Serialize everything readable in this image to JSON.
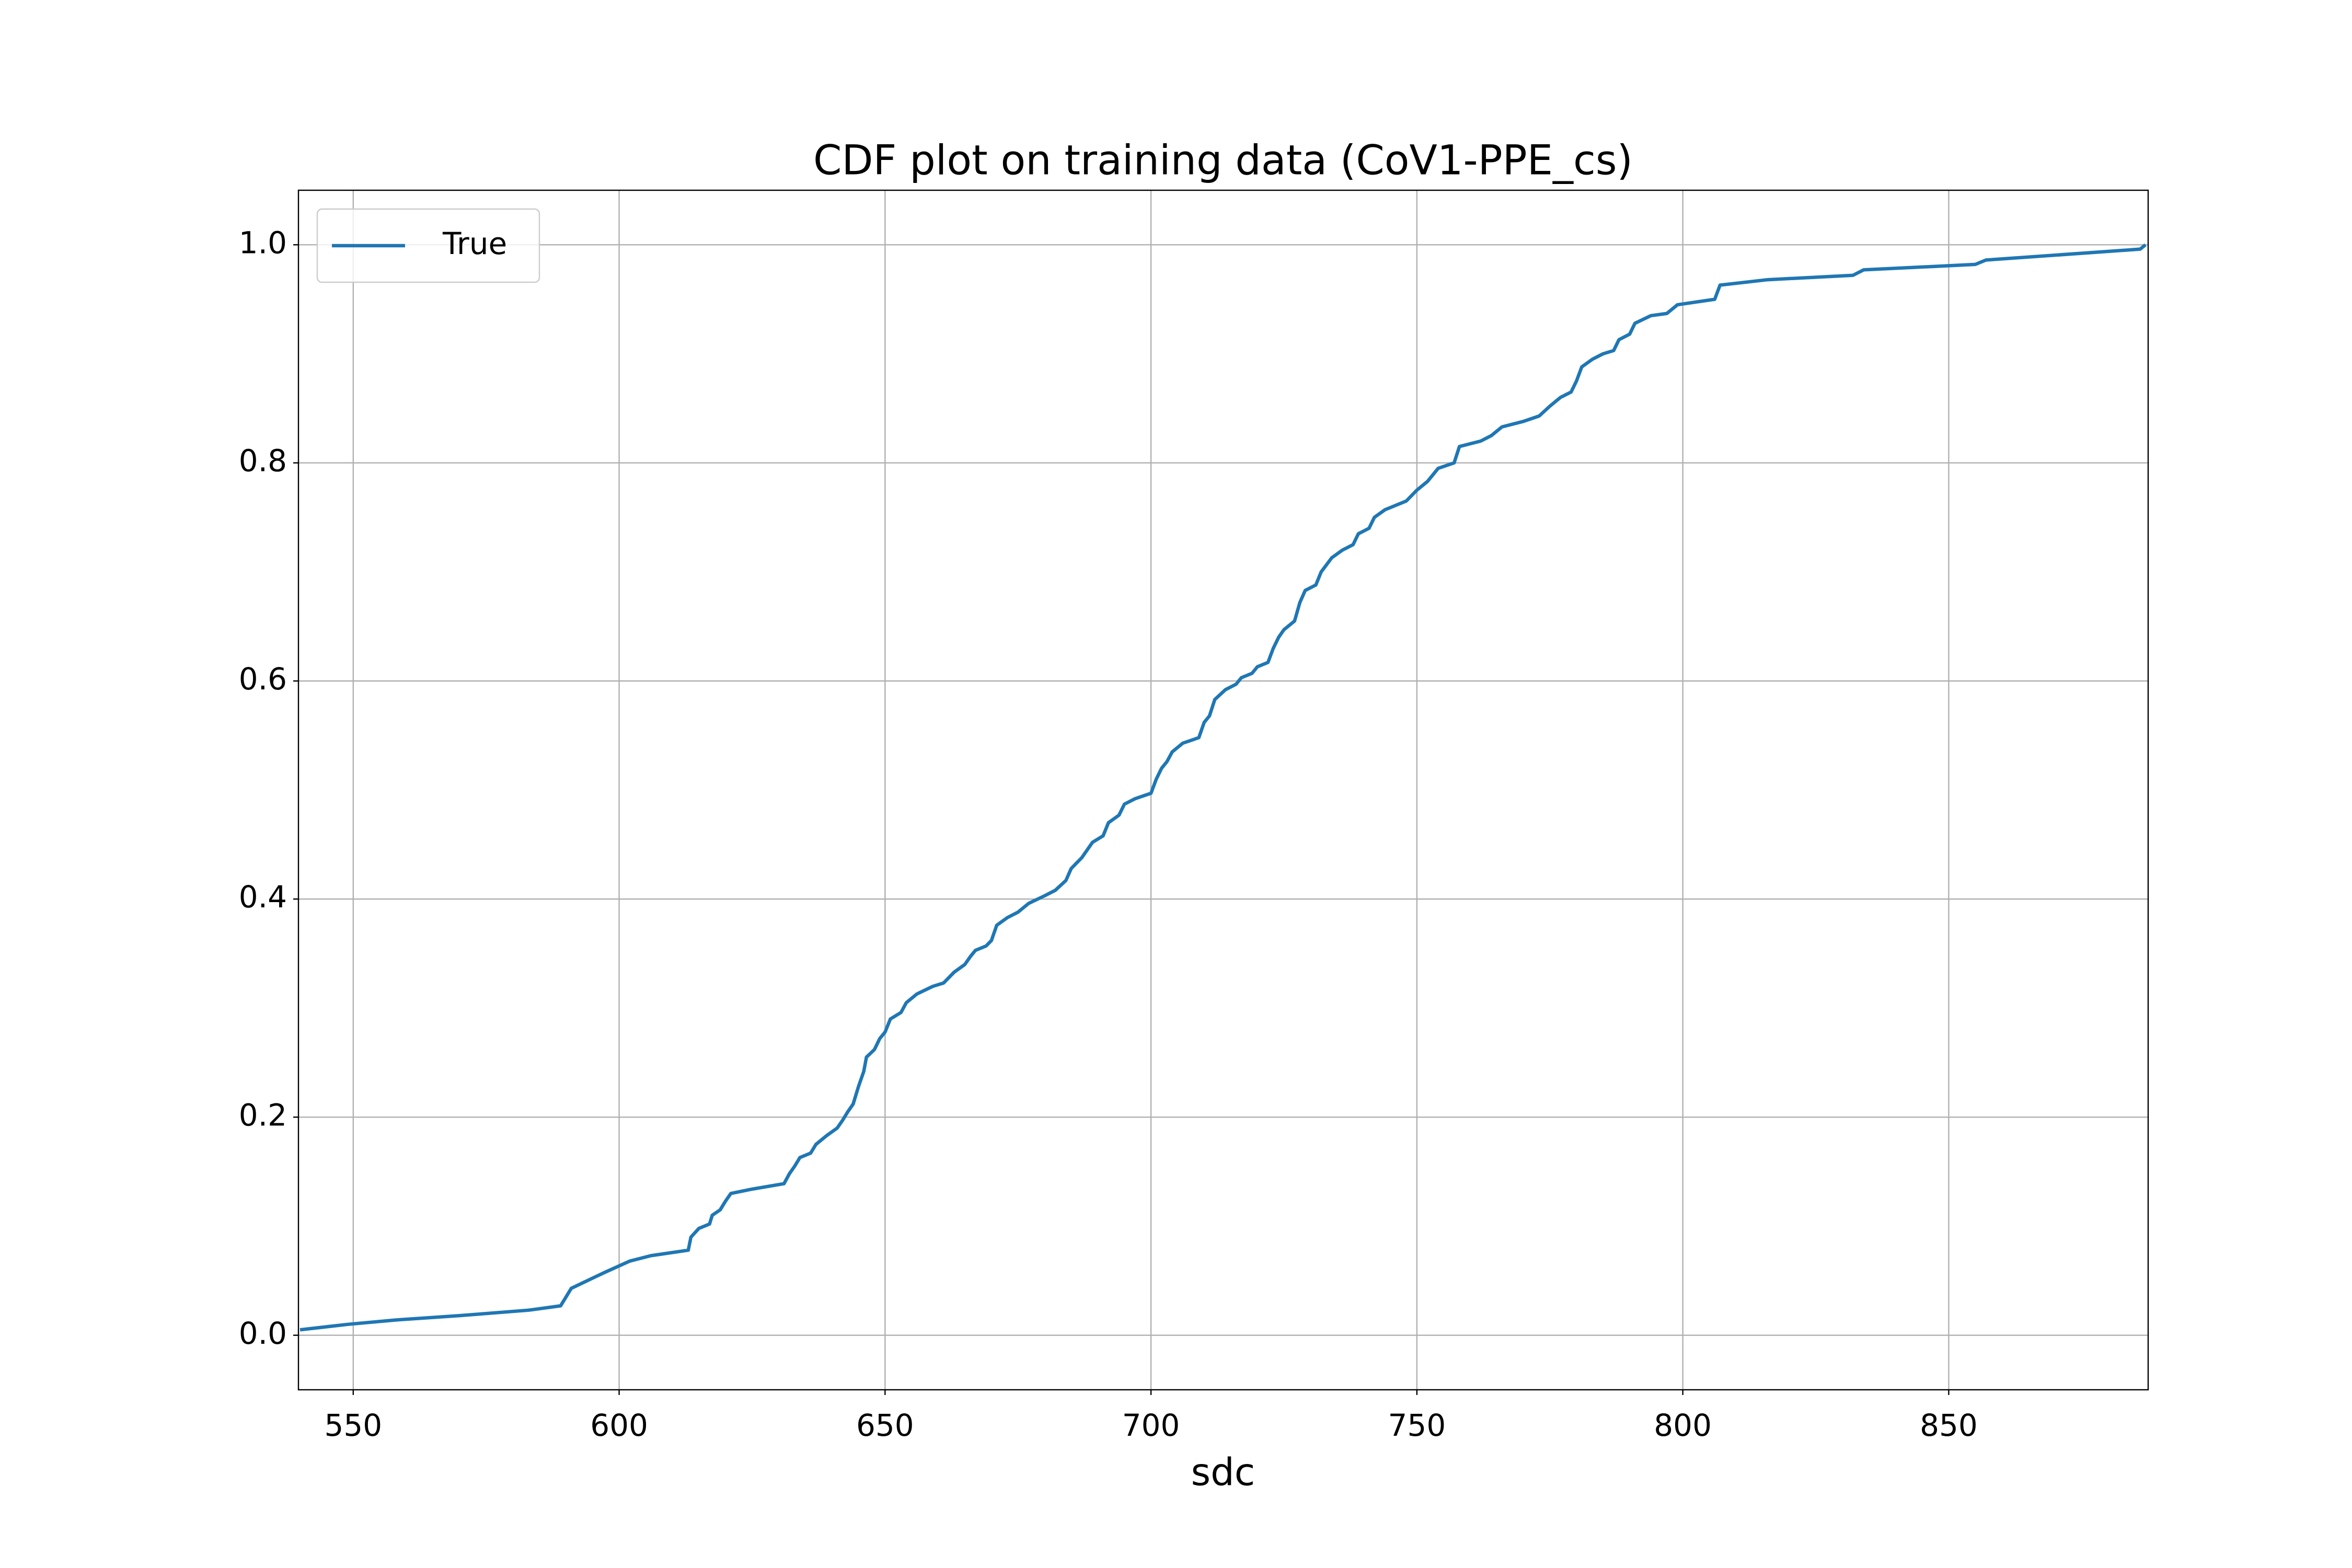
{
  "chart_data": {
    "type": "line",
    "title": "CDF plot on training data (CoV1-PPE_cs)",
    "x_label": "sdc",
    "x": [
      540,
      549,
      558,
      570,
      583,
      589,
      590,
      591,
      594,
      597,
      602,
      606,
      613,
      613.5,
      615,
      617,
      617.5,
      619,
      620,
      621,
      625,
      631,
      632,
      633,
      634,
      636,
      637,
      639,
      641,
      642,
      643,
      644,
      645,
      646,
      646.5,
      648,
      649,
      650,
      651,
      653,
      654,
      656,
      659,
      661,
      663,
      665,
      666,
      667,
      669,
      670,
      671,
      673,
      675,
      677,
      680,
      682,
      684,
      685,
      687,
      689,
      691,
      692,
      694,
      695,
      697,
      700,
      701,
      702,
      703,
      704,
      706,
      709,
      710,
      711,
      712,
      714,
      716,
      717,
      719,
      720,
      722,
      723,
      724,
      725,
      727,
      728,
      729,
      731,
      732,
      734,
      736,
      738,
      739,
      741,
      742,
      744,
      748,
      750,
      752,
      754,
      757,
      758,
      762,
      764,
      766,
      770,
      773,
      775,
      777,
      779,
      780,
      781,
      783,
      785,
      787,
      788,
      790,
      791,
      794,
      797,
      799,
      806,
      807,
      816,
      832,
      834,
      855,
      857,
      886,
      887
    ],
    "series": [
      {
        "name": "True",
        "color": "#1f77b4",
        "values": [
          0.005,
          0.01,
          0.014,
          0.018,
          0.023,
          0.027,
          0.035,
          0.043,
          0.05,
          0.057,
          0.068,
          0.073,
          0.078,
          0.09,
          0.098,
          0.102,
          0.11,
          0.115,
          0.123,
          0.13,
          0.134,
          0.139,
          0.148,
          0.155,
          0.163,
          0.167,
          0.175,
          0.183,
          0.19,
          0.197,
          0.205,
          0.212,
          0.228,
          0.242,
          0.255,
          0.262,
          0.272,
          0.278,
          0.29,
          0.296,
          0.305,
          0.313,
          0.32,
          0.323,
          0.333,
          0.34,
          0.347,
          0.353,
          0.357,
          0.362,
          0.376,
          0.383,
          0.388,
          0.396,
          0.403,
          0.408,
          0.417,
          0.428,
          0.438,
          0.452,
          0.458,
          0.47,
          0.477,
          0.487,
          0.492,
          0.497,
          0.51,
          0.52,
          0.526,
          0.535,
          0.543,
          0.548,
          0.562,
          0.568,
          0.583,
          0.592,
          0.597,
          0.603,
          0.607,
          0.613,
          0.617,
          0.63,
          0.64,
          0.647,
          0.655,
          0.672,
          0.683,
          0.688,
          0.7,
          0.713,
          0.72,
          0.725,
          0.735,
          0.74,
          0.75,
          0.757,
          0.765,
          0.775,
          0.783,
          0.795,
          0.8,
          0.815,
          0.82,
          0.825,
          0.833,
          0.838,
          0.843,
          0.852,
          0.86,
          0.865,
          0.875,
          0.888,
          0.895,
          0.9,
          0.903,
          0.913,
          0.918,
          0.928,
          0.935,
          0.937,
          0.945,
          0.95,
          0.963,
          0.968,
          0.972,
          0.977,
          0.982,
          0.986,
          0.996,
          1.0
        ]
      }
    ],
    "xlim": [
      539.7,
      887.5
    ],
    "xticks": [
      550,
      600,
      650,
      700,
      750,
      800,
      850
    ],
    "ylim": [
      -0.05,
      1.05
    ],
    "yticks": [
      {
        "value": 0,
        "label": "0.0"
      },
      0.2,
      0.4,
      0.6,
      0.8,
      {
        "value": 1,
        "label": "1.0"
      }
    ],
    "grid": true,
    "legend": "upper left"
  }
}
